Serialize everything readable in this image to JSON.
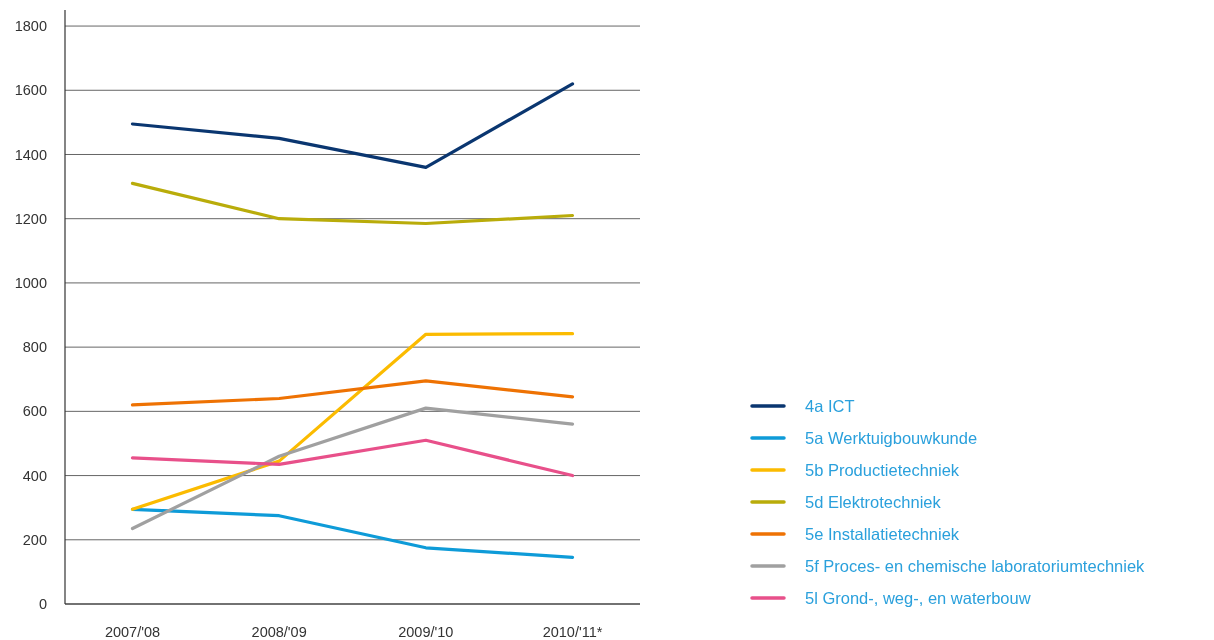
{
  "chart_data": {
    "type": "line",
    "categories": [
      "2007/'08",
      "2008/'09",
      "2009/'10",
      "2010/'11*"
    ],
    "series": [
      {
        "name": "4a ICT",
        "color": "#0a3670",
        "values": [
          1495,
          1450,
          1360,
          1620
        ]
      },
      {
        "name": "5a Werktuigbouwkunde",
        "color": "#0e9bd8",
        "values": [
          295,
          275,
          175,
          145
        ]
      },
      {
        "name": "5b Productietechniek",
        "color": "#fbbb00",
        "values": [
          295,
          445,
          840,
          842
        ]
      },
      {
        "name": "5d Elektrotechniek",
        "color": "#b9ac0a",
        "values": [
          1310,
          1200,
          1185,
          1210
        ]
      },
      {
        "name": "5e Installatietechniek",
        "color": "#ee7203",
        "values": [
          620,
          640,
          695,
          645
        ]
      },
      {
        "name": "5f Proces- en chemische laboratoriumtechniek",
        "color": "#a0a0a0",
        "values": [
          235,
          460,
          610,
          560
        ]
      },
      {
        "name": "5l Grond-, weg-, en waterbouw",
        "color": "#e8508a",
        "values": [
          455,
          435,
          510,
          400
        ]
      }
    ],
    "ylim": [
      0,
      1850
    ],
    "yticks": [
      0,
      200,
      400,
      600,
      800,
      1000,
      1200,
      1400,
      1600,
      1800
    ],
    "grid": "y",
    "legend": "right"
  }
}
